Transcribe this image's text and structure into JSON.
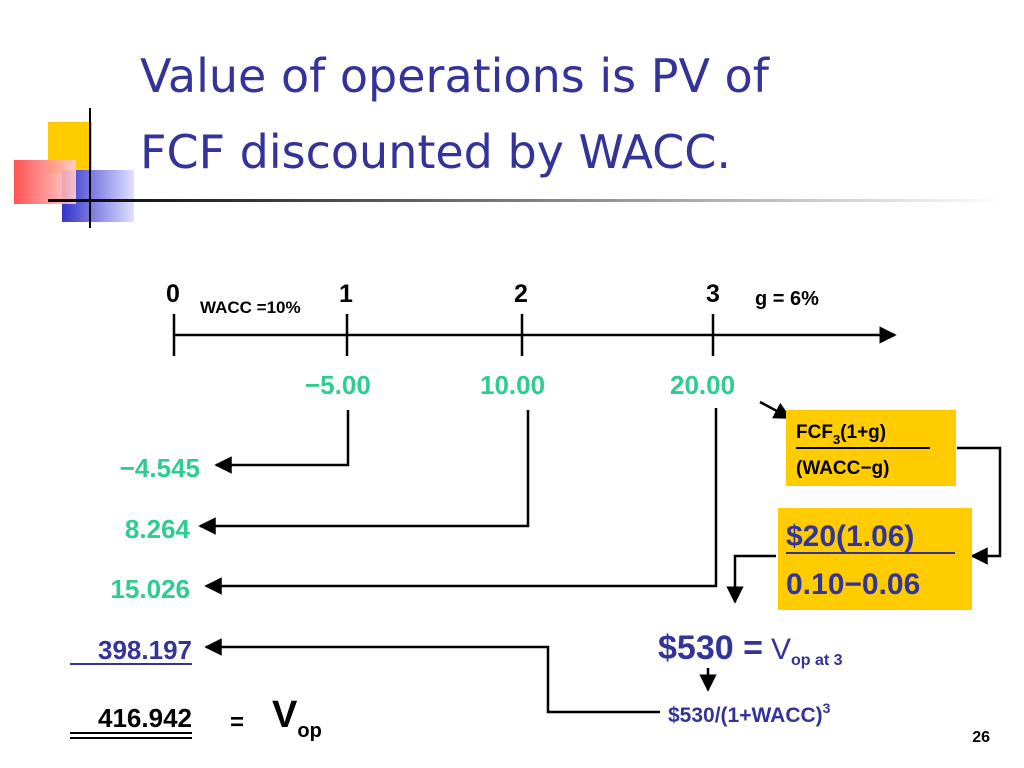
{
  "title": [
    "Value of operations is PV of",
    "FCF discounted by WACC."
  ],
  "timeline": {
    "periods": [
      "0",
      "1",
      "2",
      "3"
    ],
    "wacc": "WACC =10%",
    "growth": "g = 6%"
  },
  "cash_flows": [
    "−5.00",
    "10.00",
    "20.00"
  ],
  "present_values": [
    "−4.545",
    "8.264",
    "15.026",
    "398.197",
    "416.942"
  ],
  "terminal_formula": {
    "numerator_base": "FCF",
    "numerator_sub": "3",
    "numerator_rest": "(1+g)",
    "denominator": "(WACC−g)"
  },
  "terminal_calc": {
    "numerator": "$20(1.06)",
    "denominator": "0.10−0.06"
  },
  "terminal_value": {
    "amount": "$530 =",
    "symbol": "V",
    "sub": "op at 3"
  },
  "discounting": {
    "text": "$530/(1+WACC)",
    "sup": "3"
  },
  "total": {
    "equals": "=",
    "symbol": "V",
    "sub": "op"
  },
  "page_number": "26"
}
